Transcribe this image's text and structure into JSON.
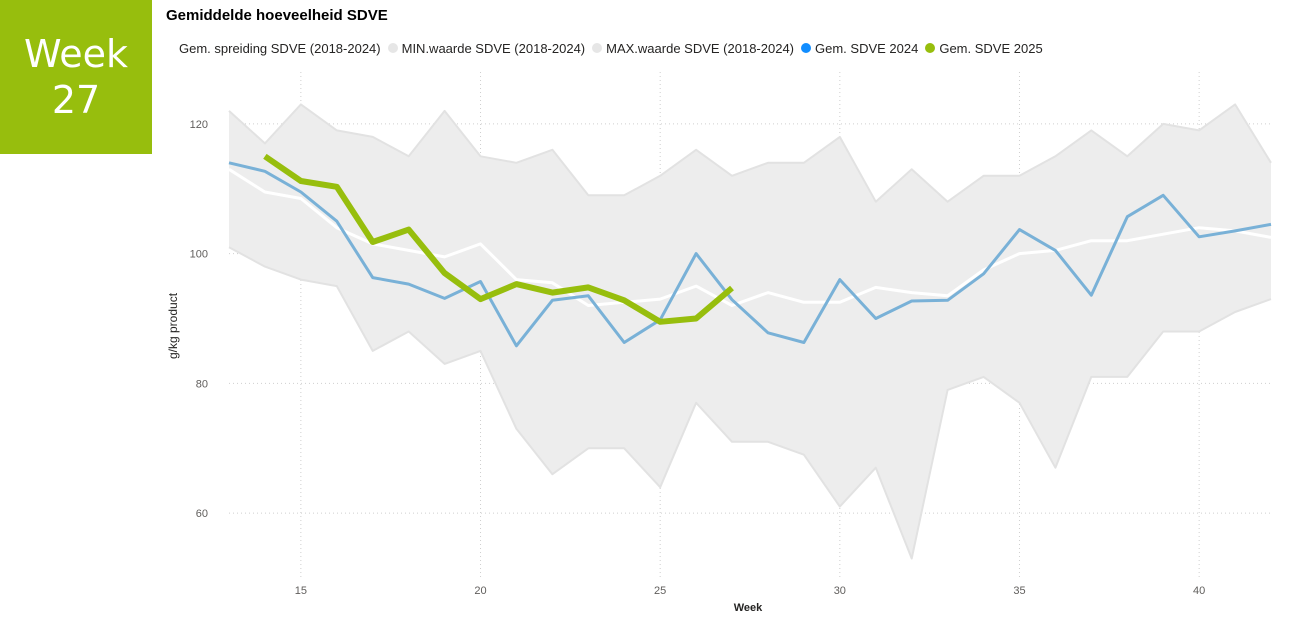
{
  "badge": {
    "line1": "Week",
    "line2": "27"
  },
  "chart_data": {
    "type": "line",
    "title": "Gemiddelde hoeveelheid SDVE",
    "xlabel": "Week",
    "ylabel": "g/kg product",
    "xlim": [
      13,
      42
    ],
    "ylim": [
      50,
      128
    ],
    "x_ticks": [
      15,
      20,
      25,
      30,
      35,
      40
    ],
    "y_ticks": [
      60,
      80,
      100,
      120
    ],
    "grid": true,
    "legend_position": "top",
    "x": [
      13,
      14,
      15,
      16,
      17,
      18,
      19,
      20,
      21,
      22,
      23,
      24,
      25,
      26,
      27,
      28,
      29,
      30,
      31,
      32,
      33,
      34,
      35,
      36,
      37,
      38,
      39,
      40,
      41,
      42
    ],
    "series": [
      {
        "name": "Gem. spreiding SDVE (2018-2024)",
        "color": "#ffffff",
        "values": [
          113,
          109.5,
          108.5,
          104,
          101.5,
          100.5,
          99.5,
          101.5,
          96,
          95.5,
          92,
          92.5,
          93,
          95,
          92,
          94,
          92.5,
          92.5,
          94.8,
          94,
          93.5,
          97.5,
          100,
          100.5,
          102,
          102,
          103,
          104,
          103.5,
          102.5
        ]
      },
      {
        "name": "MIN.waarde SDVE (2018-2024)",
        "color": "#e6e6e6",
        "values": [
          101,
          98,
          96,
          95,
          85,
          88,
          83,
          85,
          73,
          66,
          70,
          70,
          64,
          77,
          71,
          71,
          69,
          61,
          67,
          53,
          79,
          81,
          77,
          67,
          81,
          81,
          88,
          88,
          91,
          93
        ]
      },
      {
        "name": "MAX.waarde SDVE (2018-2024)",
        "color": "#e6e6e6",
        "values": [
          122,
          117,
          123,
          119,
          118,
          115,
          122,
          115,
          114,
          116,
          109,
          109,
          112,
          116,
          112,
          114,
          114,
          118,
          108,
          113,
          108,
          112,
          112,
          115,
          119,
          115,
          120,
          119,
          123,
          114
        ]
      },
      {
        "name": "Gem. SDVE 2024",
        "color": "#118dff",
        "line_color": "#79b1d7",
        "values": [
          114,
          112.7,
          109.5,
          105,
          96.3,
          95.3,
          93.1,
          95.7,
          85.8,
          92.8,
          93.5,
          86.3,
          89.8,
          100,
          92.9,
          87.8,
          86.3,
          96,
          90,
          92.7,
          92.8,
          96.9,
          103.7,
          100.5,
          93.6,
          105.7,
          109,
          102.6,
          103.5,
          104.5
        ]
      },
      {
        "name": "Gem. SDVE 2025",
        "color": "#97be0d",
        "values": [
          null,
          115,
          111.2,
          110.3,
          101.8,
          103.7,
          97,
          93,
          95.3,
          94,
          94.8,
          92.8,
          89.5,
          90,
          94.7,
          null,
          null,
          null,
          null,
          null,
          null,
          null,
          null,
          null,
          null,
          null,
          null,
          null,
          null,
          null
        ]
      }
    ]
  }
}
